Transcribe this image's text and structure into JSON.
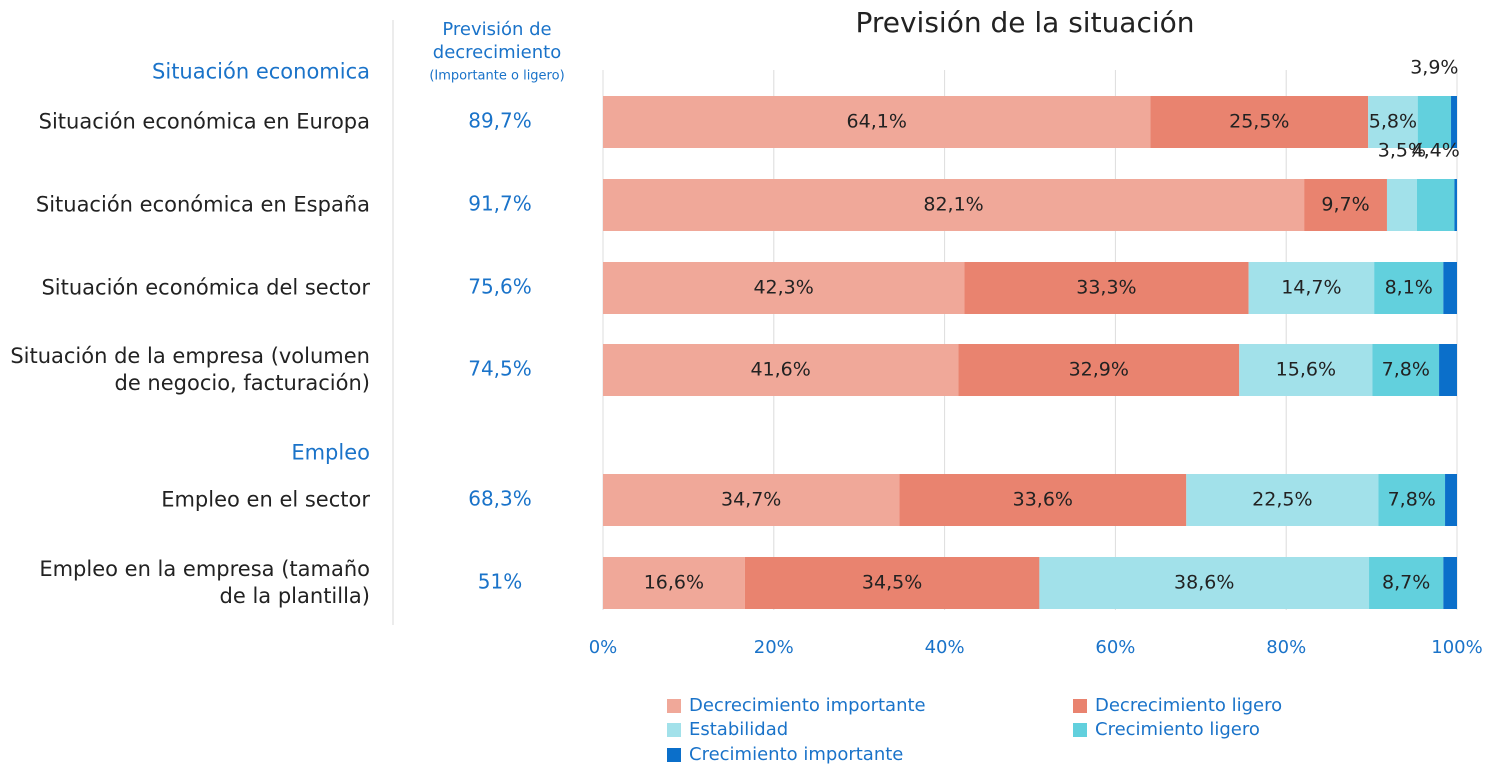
{
  "chart_data": {
    "type": "stacked_bar",
    "title": "Previsión de la situación",
    "forecast_header": "Previsión de decrecimiento",
    "forecast_subheader": "(Importante o ligero)",
    "groups": [
      {
        "name": "Situación economica",
        "categories": [
          "Situación económica en Europa",
          "Situación económica en España",
          "Situación económica del sector",
          "Situación de la empresa (volumen de negocio, facturación)"
        ]
      },
      {
        "name": "Empleo",
        "categories": [
          "Empleo en el sector",
          "Empleo en la empresa (tamaño de la plantilla)"
        ]
      }
    ],
    "forecast": {
      "values": [
        89.7,
        91.7,
        75.6,
        74.5,
        68.3,
        51
      ],
      "value_labels": [
        "89,7%",
        "91,7%",
        "75,6%",
        "74,5%",
        "68,3%",
        "51%"
      ]
    },
    "series": [
      {
        "name": "Decrecimiento importante",
        "color": "#f0a899",
        "values": [
          64.1,
          82.1,
          42.3,
          41.6,
          34.7,
          16.6
        ],
        "value_labels": [
          "64,1%",
          "82,1%",
          "42,3%",
          "41,6%",
          "34,7%",
          "16,6%"
        ]
      },
      {
        "name": "Decrecimiento ligero",
        "color": "#e9836f",
        "values": [
          25.5,
          9.7,
          33.3,
          32.9,
          33.6,
          34.5
        ],
        "value_labels": [
          "25,5%",
          "9,7%",
          "33,3%",
          "32,9%",
          "33,6%",
          "34,5%"
        ]
      },
      {
        "name": "Estabilidad",
        "color": "#a2e1ea",
        "values": [
          5.8,
          3.5,
          14.7,
          15.6,
          22.5,
          38.6
        ],
        "value_labels": [
          "5,8%",
          "3,5%",
          "14,7%",
          "15,6%",
          "22,5%",
          "38,6%"
        ]
      },
      {
        "name": "Crecimiento ligero",
        "color": "#62d0dd",
        "values": [
          3.9,
          4.4,
          8.1,
          7.8,
          7.8,
          8.7
        ],
        "value_labels": [
          "3,9%",
          "4,4%",
          "8,1%",
          "7,8%",
          "7,8%",
          "8,7%"
        ]
      },
      {
        "name": "Crecimiento importante",
        "color": "#0b6fca",
        "values": [
          0.7,
          0.3,
          1.6,
          2.1,
          1.4,
          1.6
        ]
      }
    ],
    "xlim": [
      0,
      100
    ],
    "xticks": [
      {
        "value": 0,
        "label": "0%"
      },
      {
        "value": 20,
        "label": "20%"
      },
      {
        "value": 40,
        "label": "40%"
      },
      {
        "value": 60,
        "label": "60%"
      },
      {
        "value": 80,
        "label": "80%"
      },
      {
        "value": 100,
        "label": "100%"
      }
    ],
    "grid": true
  }
}
